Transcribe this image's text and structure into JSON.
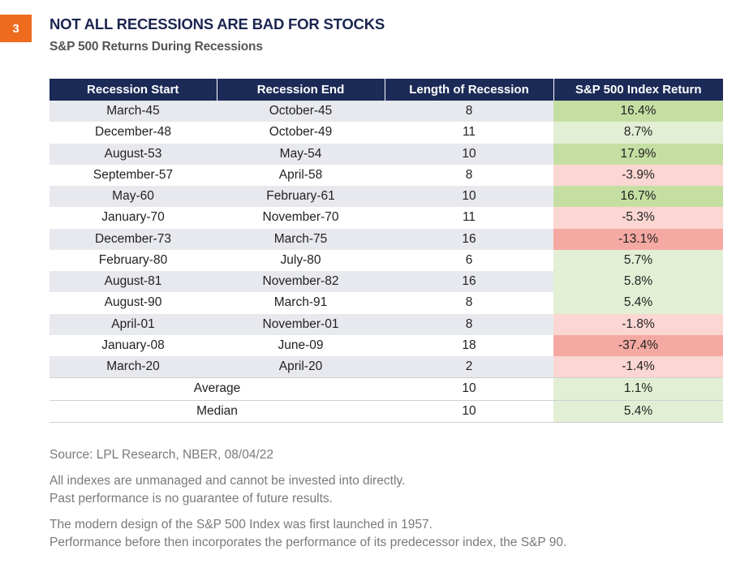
{
  "badge": "3",
  "title": "NOT ALL RECESSIONS ARE BAD FOR STOCKS",
  "subtitle": "S&P 500 Returns During Recessions",
  "chart_data": {
    "type": "table",
    "columns": [
      "Recession Start",
      "Recession End",
      "Length of Recession",
      "S&P 500 Index Return"
    ],
    "rows": [
      {
        "start": "March-45",
        "end": "October-45",
        "length": "8",
        "ret": "16.4%",
        "value": 16.4
      },
      {
        "start": "December-48",
        "end": "October-49",
        "length": "11",
        "ret": "8.7%",
        "value": 8.7
      },
      {
        "start": "August-53",
        "end": "May-54",
        "length": "10",
        "ret": "17.9%",
        "value": 17.9
      },
      {
        "start": "September-57",
        "end": "April-58",
        "length": "8",
        "ret": "-3.9%",
        "value": -3.9
      },
      {
        "start": "May-60",
        "end": "February-61",
        "length": "10",
        "ret": "16.7%",
        "value": 16.7
      },
      {
        "start": "January-70",
        "end": "November-70",
        "length": "11",
        "ret": "-5.3%",
        "value": -5.3
      },
      {
        "start": "December-73",
        "end": "March-75",
        "length": "16",
        "ret": "-13.1%",
        "value": -13.1
      },
      {
        "start": "February-80",
        "end": "July-80",
        "length": "6",
        "ret": "5.7%",
        "value": 5.7
      },
      {
        "start": "August-81",
        "end": "November-82",
        "length": "16",
        "ret": "5.8%",
        "value": 5.8
      },
      {
        "start": "August-90",
        "end": "March-91",
        "length": "8",
        "ret": "5.4%",
        "value": 5.4
      },
      {
        "start": "April-01",
        "end": "November-01",
        "length": "8",
        "ret": "-1.8%",
        "value": -1.8
      },
      {
        "start": "January-08",
        "end": "June-09",
        "length": "18",
        "ret": "-37.4%",
        "value": -37.4
      },
      {
        "start": "March-20",
        "end": "April-20",
        "length": "2",
        "ret": "-1.4%",
        "value": -1.4
      }
    ],
    "summary": [
      {
        "label": "Average",
        "length": "10",
        "ret": "1.1%",
        "value": 1.1
      },
      {
        "label": "Median",
        "length": "10",
        "ret": "5.4%",
        "value": 5.4
      }
    ],
    "cell_colors": {
      "strong_positive": "#c5dfa3",
      "light_positive": "#e3efd4",
      "light_negative": "#fbd6d2",
      "strong_negative": "#f5a9a3"
    }
  },
  "notes": {
    "source": "Source: LPL Research, NBER, 08/04/22",
    "disclaimer_1": "All indexes are unmanaged and cannot be invested into directly.",
    "disclaimer_2": "Past performance is no guarantee of future results.",
    "history_1": "The modern design of the S&P 500 Index was first launched in 1957.",
    "history_2": "Performance before then incorporates the performance of its predecessor index, the S&P 90."
  }
}
